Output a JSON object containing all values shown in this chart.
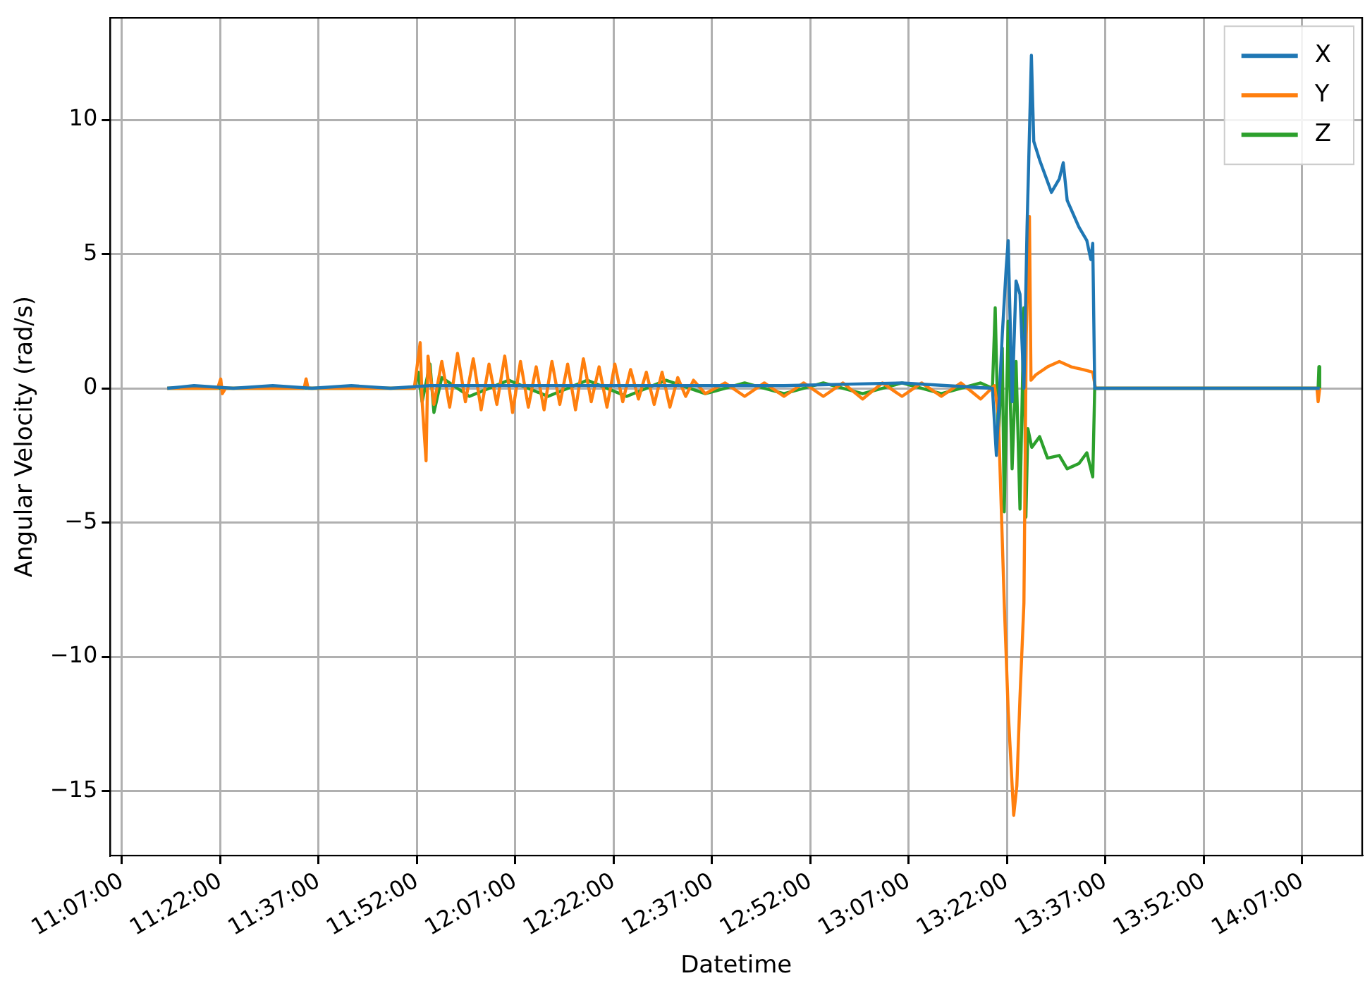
{
  "chart_data": {
    "type": "line",
    "xlabel": "Datetime",
    "ylabel": "Angular Velocity (rad/s)",
    "xlim": [
      11.087,
      14.27
    ],
    "ylim": [
      -17.4,
      13.8
    ],
    "xticks": [
      {
        "value": 11.1167,
        "label": "11:07:00"
      },
      {
        "value": 11.3667,
        "label": "11:22:00"
      },
      {
        "value": 11.6167,
        "label": "11:37:00"
      },
      {
        "value": 11.8667,
        "label": "11:52:00"
      },
      {
        "value": 12.1167,
        "label": "12:07:00"
      },
      {
        "value": 12.3667,
        "label": "12:22:00"
      },
      {
        "value": 12.6167,
        "label": "12:37:00"
      },
      {
        "value": 12.8667,
        "label": "12:52:00"
      },
      {
        "value": 13.1167,
        "label": "13:07:00"
      },
      {
        "value": 13.3667,
        "label": "13:22:00"
      },
      {
        "value": 13.6167,
        "label": "13:37:00"
      },
      {
        "value": 13.8667,
        "label": "13:52:00"
      },
      {
        "value": 14.1167,
        "label": "14:07:00"
      }
    ],
    "yticks": [
      -15,
      -10,
      -5,
      0,
      5,
      10
    ],
    "grid": true,
    "legend": "top right",
    "marker": "none",
    "line_style": "solid",
    "series": [
      {
        "name": "X",
        "color": "#1f77b4",
        "x": [
          11.232,
          11.3,
          11.4,
          11.5,
          11.6,
          11.7,
          11.8,
          11.9,
          12.2,
          12.5,
          12.8,
          13.1,
          13.33,
          13.34,
          13.355,
          13.365,
          13.37,
          13.38,
          13.39,
          13.4,
          13.41,
          13.418,
          13.429,
          13.435,
          13.45,
          13.48,
          13.5,
          13.51,
          13.52,
          13.55,
          13.57,
          13.58,
          13.585,
          13.59,
          14.162
        ],
        "values": [
          0,
          0.1,
          0,
          0.1,
          0,
          0.1,
          0,
          0.1,
          0.1,
          0.1,
          0.1,
          0.2,
          0,
          -2.5,
          2,
          4.5,
          5.5,
          -0.5,
          4,
          3.5,
          0,
          6,
          12.4,
          9.2,
          8.5,
          7.3,
          7.8,
          8.4,
          7,
          6,
          5.5,
          4.8,
          5.4,
          0,
          0
        ]
      },
      {
        "name": "Y",
        "color": "#ff7f0e",
        "x": [
          11.232,
          11.36,
          11.368,
          11.372,
          11.38,
          11.58,
          11.585,
          11.59,
          11.86,
          11.875,
          11.88,
          11.89,
          11.895,
          11.91,
          11.93,
          11.95,
          11.97,
          11.99,
          12.01,
          12.03,
          12.05,
          12.07,
          12.09,
          12.11,
          12.13,
          12.15,
          12.17,
          12.19,
          12.21,
          12.23,
          12.25,
          12.27,
          12.29,
          12.31,
          12.33,
          12.35,
          12.37,
          12.39,
          12.41,
          12.43,
          12.45,
          12.47,
          12.49,
          12.51,
          12.53,
          12.55,
          12.57,
          12.6,
          12.65,
          12.7,
          12.75,
          12.8,
          12.85,
          12.9,
          12.95,
          13.0,
          13.05,
          13.1,
          13.15,
          13.2,
          13.25,
          13.3,
          13.335,
          13.345,
          13.36,
          13.37,
          13.384,
          13.392,
          13.4,
          13.41,
          13.416,
          13.424,
          13.428,
          13.44,
          13.47,
          13.5,
          13.53,
          13.56,
          13.585,
          13.592,
          14.155,
          14.158,
          14.162
        ],
        "values": [
          0,
          0,
          0.35,
          -0.2,
          0,
          0,
          0.35,
          0,
          0,
          1.7,
          -0.5,
          -2.7,
          1.2,
          -0.6,
          1,
          -0.7,
          1.3,
          -0.5,
          1.1,
          -0.8,
          0.9,
          -0.6,
          1.2,
          -0.9,
          1,
          -0.7,
          0.8,
          -0.8,
          1,
          -0.6,
          0.9,
          -0.8,
          1.1,
          -0.5,
          0.8,
          -0.7,
          0.9,
          -0.5,
          0.7,
          -0.4,
          0.6,
          -0.6,
          0.6,
          -0.7,
          0.4,
          -0.3,
          0.3,
          -0.2,
          0.2,
          -0.3,
          0.2,
          -0.3,
          0.2,
          -0.3,
          0.2,
          -0.4,
          0.2,
          -0.3,
          0.2,
          -0.3,
          0.2,
          -0.4,
          0.1,
          -1,
          -8,
          -12,
          -15.9,
          -14.8,
          -11.5,
          -8,
          2,
          6.4,
          0.3,
          0.5,
          0.8,
          1,
          0.8,
          0.7,
          0.6,
          0,
          0,
          -0.5,
          0
        ]
      },
      {
        "name": "Z",
        "color": "#2ca02c",
        "x": [
          11.232,
          11.86,
          11.87,
          11.88,
          11.9,
          11.91,
          11.93,
          12.0,
          12.1,
          12.2,
          12.3,
          12.4,
          12.5,
          12.6,
          12.7,
          12.8,
          12.9,
          13.0,
          13.1,
          13.2,
          13.3,
          13.33,
          13.337,
          13.345,
          13.355,
          13.36,
          13.37,
          13.38,
          13.39,
          13.4,
          13.41,
          13.415,
          13.42,
          13.43,
          13.45,
          13.47,
          13.5,
          13.52,
          13.55,
          13.57,
          13.585,
          13.59,
          14.158,
          14.16,
          14.162
        ],
        "values": [
          0,
          0,
          0.6,
          -0.5,
          0.9,
          -0.9,
          0.4,
          -0.3,
          0.3,
          -0.3,
          0.3,
          -0.3,
          0.3,
          -0.2,
          0.2,
          -0.2,
          0.2,
          -0.2,
          0.2,
          -0.2,
          0.2,
          0,
          3,
          -2,
          1.5,
          -4.6,
          2.5,
          -3,
          1,
          -4.5,
          3,
          -4.8,
          -1.5,
          -2.2,
          -1.8,
          -2.6,
          -2.5,
          -3,
          -2.8,
          -2.4,
          -3.3,
          0,
          0,
          0.8,
          0
        ]
      }
    ]
  }
}
